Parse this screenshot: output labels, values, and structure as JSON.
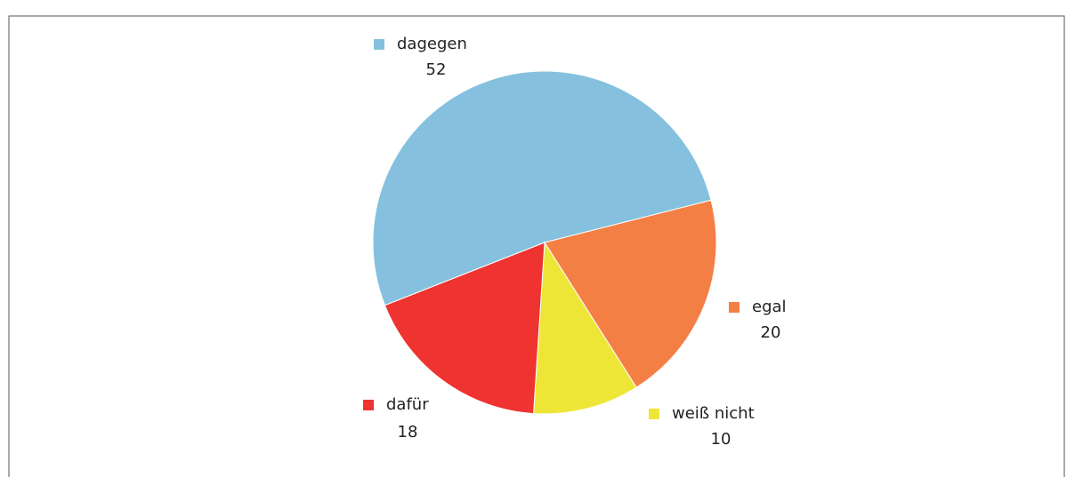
{
  "chart_data": {
    "type": "pie",
    "categories": [
      "dagegen",
      "egal",
      "weiß nicht",
      "dafür"
    ],
    "values": [
      52,
      20,
      10,
      18
    ],
    "colors": [
      "#85c1de",
      "#f47f45",
      "#ede637",
      "#ee3330"
    ]
  }
}
